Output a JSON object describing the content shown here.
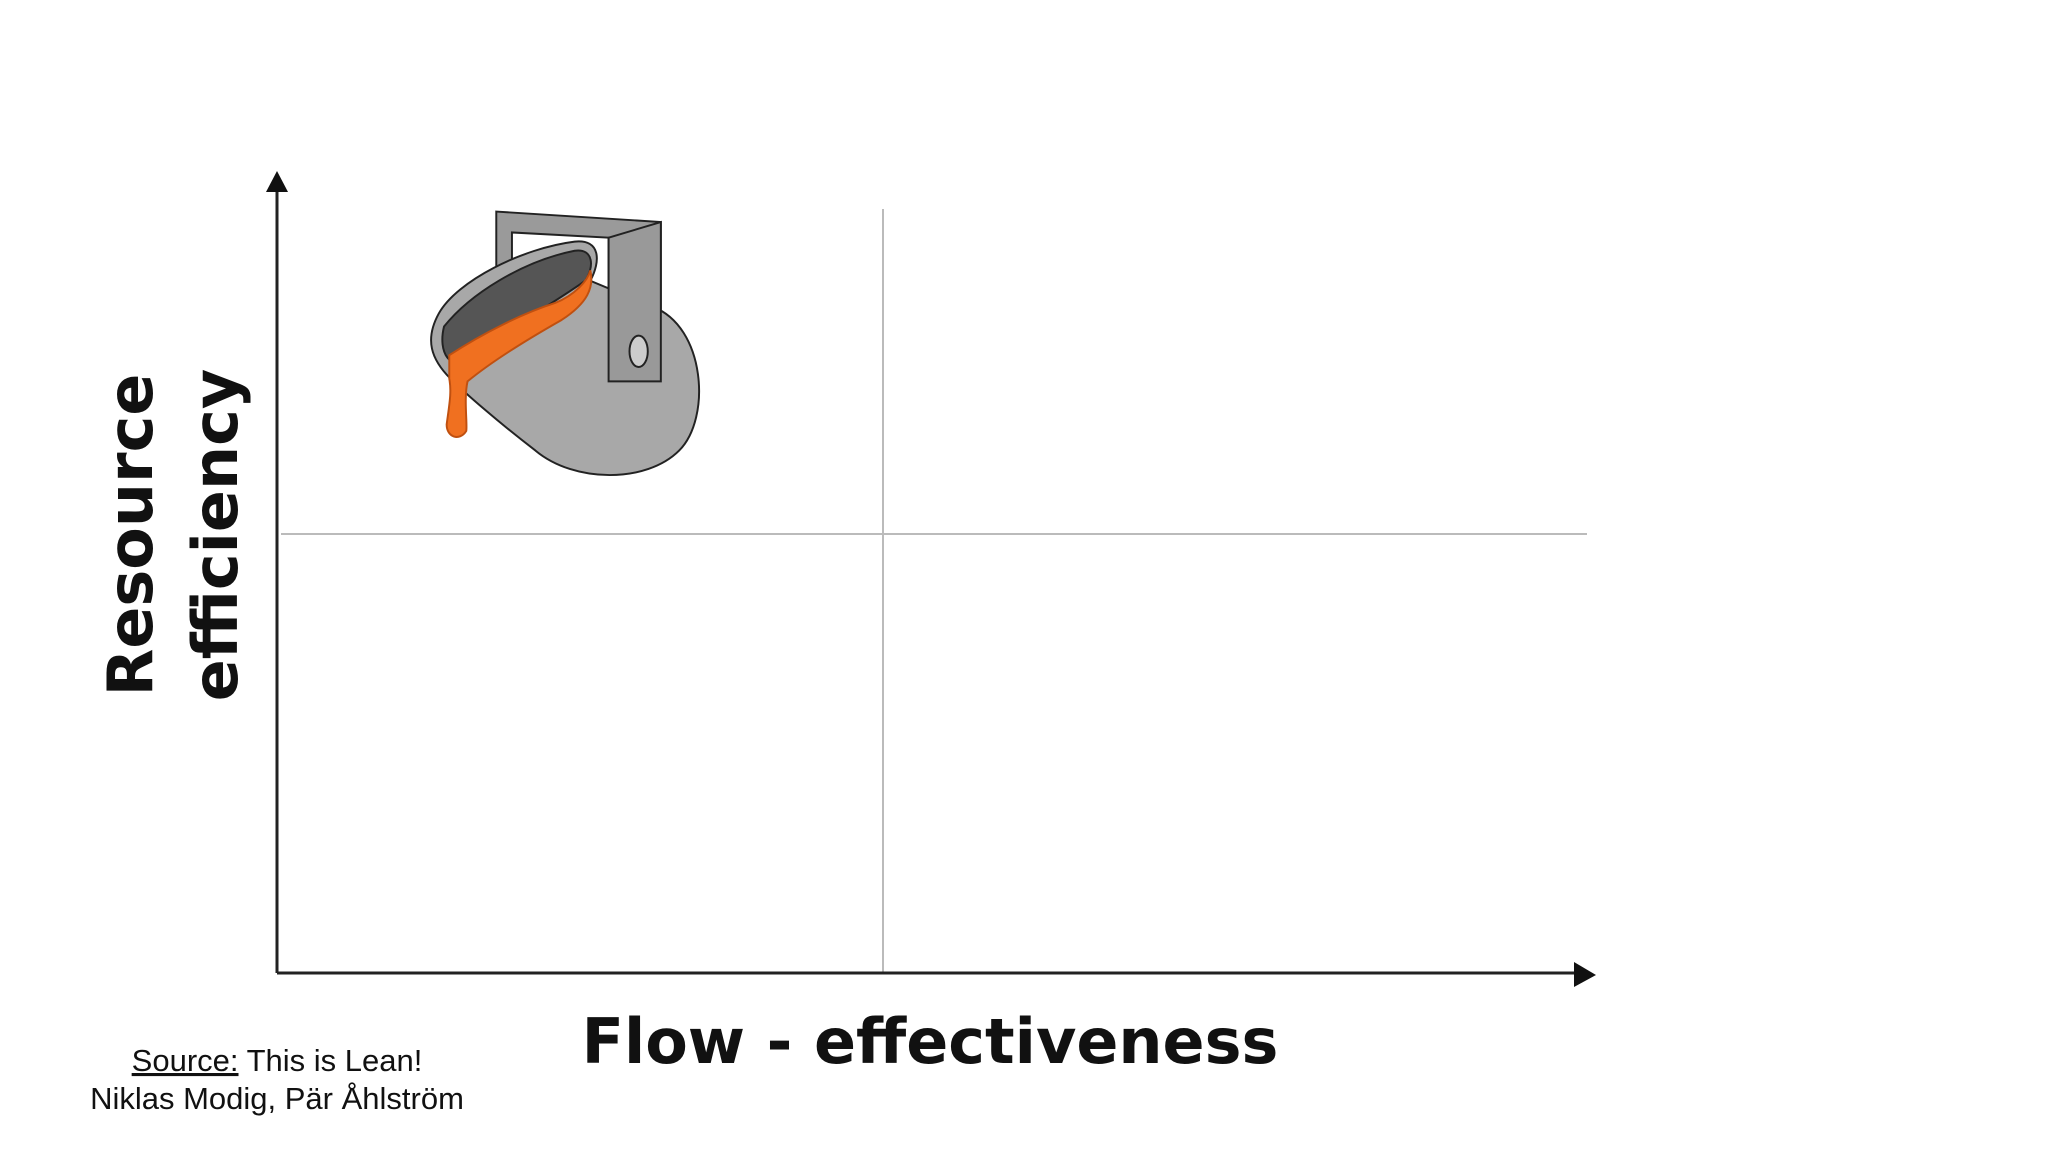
{
  "diagram": {
    "x_axis_label": "Flow - effectiveness",
    "y_axis_label": [
      "Resource",
      "efficiency"
    ]
  },
  "source": {
    "label": "Source:",
    "title": "This is Lean!",
    "authors": "Niklas Modig, Pär Åhlström"
  }
}
